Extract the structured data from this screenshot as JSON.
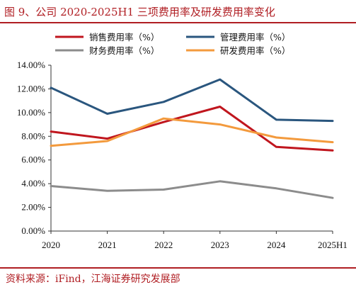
{
  "title": "图 9、公司 2020-2025H1 三项费用率及研发费用率变化",
  "source": "资料来源：iFind，江海证券研究发展部",
  "colors": {
    "accent": "#b01e23",
    "selling": "#c0161e",
    "management": "#2a567e",
    "finance": "#8c8c8c",
    "rnd": "#f39a3d"
  },
  "chart_data": {
    "type": "line",
    "categories": [
      "2020",
      "2021",
      "2022",
      "2023",
      "2024",
      "2025H1"
    ],
    "ylim": [
      0,
      14
    ],
    "yticks": [
      "0.00%",
      "2.00%",
      "4.00%",
      "6.00%",
      "8.00%",
      "10.00%",
      "12.00%",
      "14.00%"
    ],
    "grid": false,
    "legend": "top",
    "series": [
      {
        "name": "销售费用率（%）",
        "color": "#c0161e",
        "values": [
          8.4,
          7.8,
          9.2,
          10.5,
          7.1,
          6.8
        ]
      },
      {
        "name": "管理费用率（%）",
        "color": "#2a567e",
        "values": [
          12.1,
          9.9,
          10.9,
          12.8,
          9.4,
          9.3
        ]
      },
      {
        "name": "财务费用率（%）",
        "color": "#8c8c8c",
        "values": [
          3.8,
          3.4,
          3.5,
          4.2,
          3.6,
          2.8
        ]
      },
      {
        "name": "研发费用率（%）",
        "color": "#f39a3d",
        "values": [
          7.2,
          7.6,
          9.5,
          9.0,
          7.9,
          7.5
        ]
      }
    ]
  }
}
